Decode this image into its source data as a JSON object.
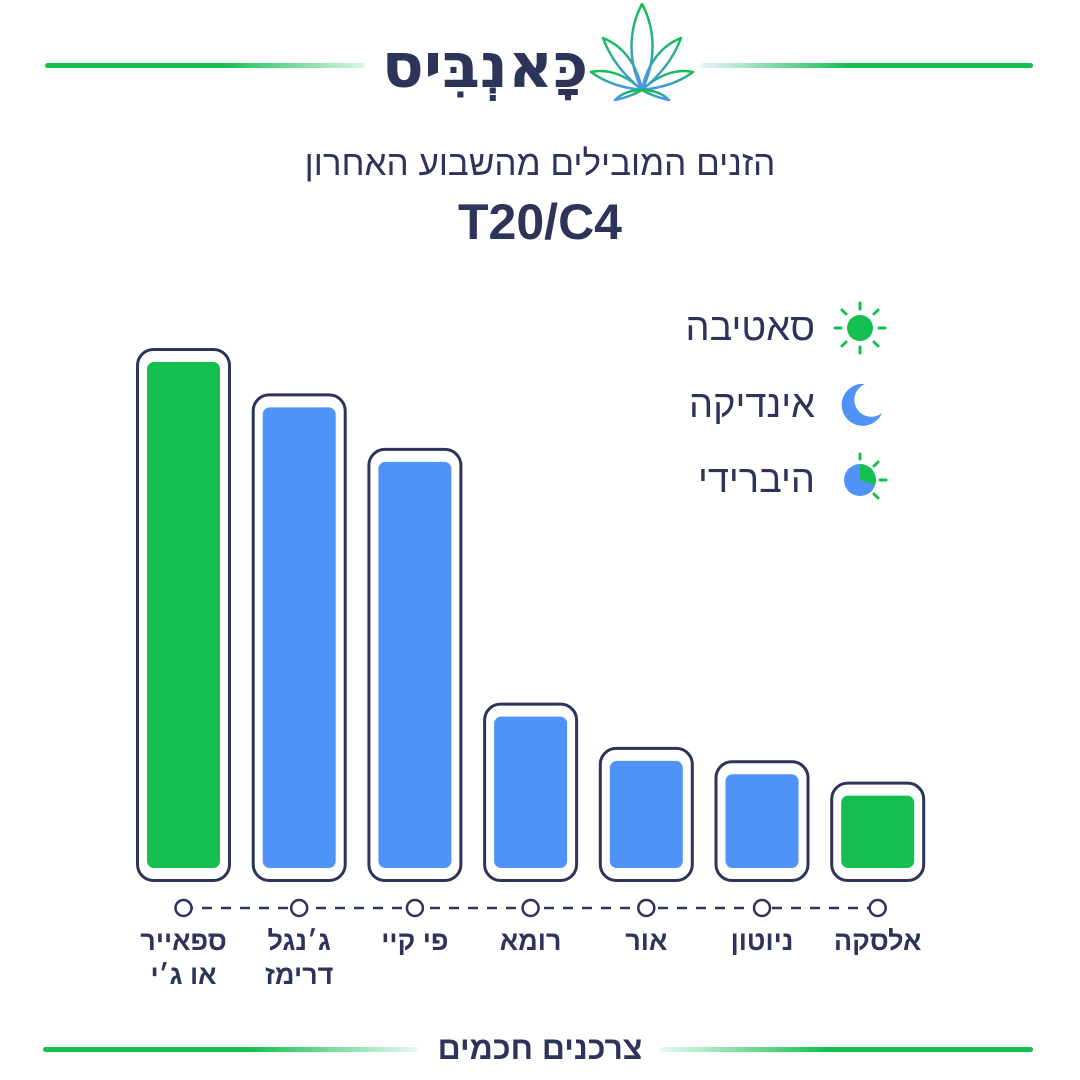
{
  "brand": {
    "logo_text": "כָּאנְבִּיס",
    "footer_text": "צרכנים חכמים"
  },
  "header": {
    "subtitle": "הזנים המובילים מהשבוע האחרון",
    "title": "T20/C4"
  },
  "legend": [
    {
      "label": "סאטיבה",
      "icon": "sun-icon"
    },
    {
      "label": "אינדיקה",
      "icon": "moon-icon"
    },
    {
      "label": "היברידי",
      "icon": "half-sun-moon-icon"
    }
  ],
  "colors": {
    "sativa": "#12bf4f",
    "indica": "#4f93f8",
    "outline": "#2e3459",
    "text": "#2e3459"
  },
  "chart_data": {
    "type": "bar",
    "title": "T20/C4",
    "categories": [
      "ספאייר\nאו ג׳י",
      "ג׳נגל\nדרימז",
      "פי קיי",
      "רומא",
      "אור",
      "ניוטון",
      "אלסקה"
    ],
    "series": [
      {
        "values": [
          100,
          91.5,
          81.3,
          33.6,
          25.3,
          22.8,
          18.8
        ]
      }
    ],
    "strain_type": [
      "sativa",
      "indica",
      "indica",
      "indica",
      "indica",
      "indica",
      "sativa"
    ],
    "ylim": [
      0,
      100
    ],
    "grid": false,
    "legend_position": "top-right"
  }
}
